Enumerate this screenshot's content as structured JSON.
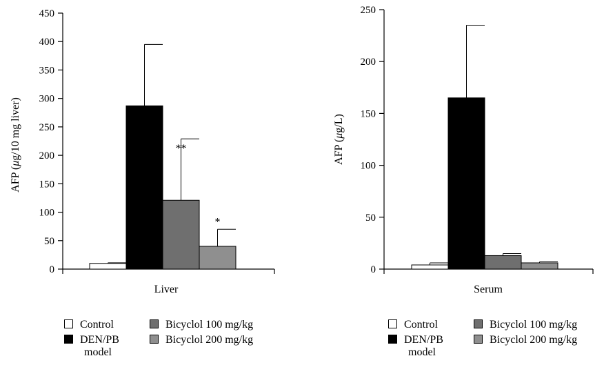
{
  "colors": {
    "control": "#ffffff",
    "model": "#000000",
    "bicyclol100": "#6f6f6f",
    "bicyclol200": "#8f8f8f",
    "axis": "#000000"
  },
  "chart_data": [
    {
      "type": "bar",
      "xlabel": "Liver",
      "ylabel": "AFP (μg/10 mg liver)",
      "ylim": [
        0,
        450
      ],
      "yticks": [
        0,
        50,
        100,
        150,
        200,
        250,
        300,
        350,
        400,
        450
      ],
      "categories": [
        "Liver"
      ],
      "series": [
        {
          "name": "Control",
          "values": [
            10
          ],
          "error": [
            1
          ]
        },
        {
          "name": "DEN/PB model",
          "values": [
            287
          ],
          "error": [
            108
          ],
          "annotation": "#"
        },
        {
          "name": "Bicyclol 100 mg/kg",
          "values": [
            121
          ],
          "error": [
            108
          ],
          "annotation": "**"
        },
        {
          "name": "Bicyclol 200 mg/kg",
          "values": [
            40
          ],
          "error": [
            30
          ],
          "annotation": "*"
        }
      ],
      "grid": false,
      "legend": "bottom"
    },
    {
      "type": "bar",
      "xlabel": "Serum",
      "ylabel": "AFP (μg/L)",
      "ylim": [
        0,
        250
      ],
      "yticks": [
        0,
        50,
        100,
        150,
        200,
        250
      ],
      "categories": [
        "Serum"
      ],
      "series": [
        {
          "name": "Control",
          "values": [
            4
          ],
          "error": [
            2
          ]
        },
        {
          "name": "DEN/PB model",
          "values": [
            165
          ],
          "error": [
            70
          ]
        },
        {
          "name": "Bicyclol 100 mg/kg",
          "values": [
            13
          ],
          "error": [
            2
          ]
        },
        {
          "name": "Bicyclol 200 mg/kg",
          "values": [
            6
          ],
          "error": [
            1
          ]
        }
      ],
      "grid": false,
      "legend": "bottom"
    }
  ],
  "legends": [
    {
      "control": "Control",
      "model_line1": "DEN/PB",
      "model_line2": "model",
      "bicyclol100": "Bicyclol 100 mg/kg",
      "bicyclol200": "Bicyclol 200 mg/kg"
    },
    {
      "control": "Control",
      "model_line1": "DEN/PB",
      "model_line2": "model",
      "bicyclol100": "Bicyclol 100 mg/kg",
      "bicyclol200": "Bicyclol 200 mg/kg"
    }
  ]
}
